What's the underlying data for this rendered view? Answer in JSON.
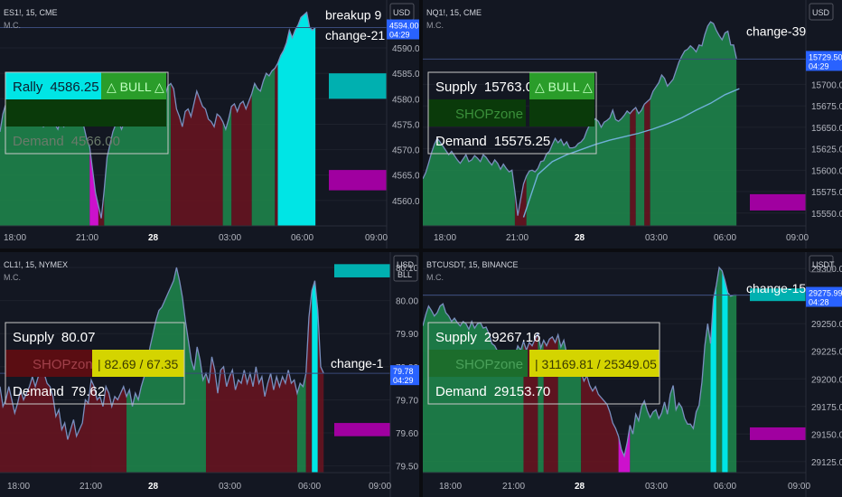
{
  "colors": {
    "background": "#131722",
    "bull_fill": "#1f8a4c",
    "bear_fill": "#6b1420",
    "magenta": "#cc11cc",
    "cyan": "#00e5e5",
    "line": "#6fb0d8",
    "box_border": "#c8c8c8",
    "price_label": "#2962ff",
    "demand_band": "#a000a0",
    "supply_band": "#00b0b0",
    "bull_badge": "#2a9d2a",
    "yellow": "#d4d400",
    "shop_dark": "#0a3a0a",
    "shop_red": "#5a0d12",
    "shop_green": "#1c6d2c",
    "rally_cyan": "#00e5e5",
    "grid": "#1e222d"
  },
  "chart_data": [
    {
      "type": "area",
      "title": "ES1!, 15, CME",
      "subtitle": "M.C.",
      "currency": "USD",
      "unit": "",
      "ylim": [
        4555,
        4598
      ],
      "yticks": [
        4560,
        4565,
        4570,
        4575,
        4580,
        4585,
        4590
      ],
      "ytick_labels": [
        "4560.00",
        "4565.00",
        "4570.00",
        "4575.00",
        "4580.00",
        "4585.00",
        "4590.00"
      ],
      "xticks": [
        "18:00",
        "21:00",
        "28",
        "03:00",
        "06:00",
        "09:00"
      ],
      "xtick_pos": [
        0.0,
        0.0,
        0.0,
        0.0,
        0.0,
        0.0
      ],
      "x_range": [
        0,
        114
      ],
      "price_label": "4594.00",
      "price_time": "04:29",
      "price_value": 4594.0,
      "values": [
        4573.5,
        4577.0,
        4579.0,
        4581.0,
        4578.5,
        4579.5,
        4577.0,
        4576.0,
        4575.5,
        4578.0,
        4576.5,
        4576.0,
        4577.5,
        4575.0,
        4576.0,
        4574.5,
        4575.0,
        4576.5,
        4575.5,
        4575.0,
        4574.0,
        4576.0,
        4574.5,
        4575.0,
        4576.5,
        4575.5,
        4576.0,
        4575.0,
        4577.0,
        4574.5,
        4572.0,
        4570.5,
        4566.0,
        4561.5,
        4559.0,
        4556.5,
        4562.0,
        4568.5,
        4571.0,
        4573.5,
        4575.0,
        4575.5,
        4574.0,
        4575.5,
        4577.0,
        4575.5,
        4576.0,
        4578.5,
        4578.0,
        4576.5,
        4578.0,
        4577.5,
        4576.5,
        4577.0,
        4578.0,
        4577.0,
        4579.0,
        4580.5,
        4582.5,
        4583.0,
        4582.0,
        4578.0,
        4576.5,
        4574.5,
        4577.5,
        4578.0,
        4576.5,
        4579.0,
        4581.5,
        4580.0,
        4578.5,
        4578.0,
        4576.0,
        4575.5,
        4574.5,
        4577.0,
        4576.5,
        4575.5,
        4574.0,
        4576.0,
        4578.5,
        4579.0,
        4577.5,
        4579.0,
        4579.5,
        4578.0,
        4579.5,
        4581.0,
        4583.0,
        4582.0,
        4581.5,
        4583.5,
        4585.0,
        4584.5,
        4585.5,
        4586.0,
        4587.0,
        4588.5,
        4589.5,
        4591.0,
        4593.5,
        4592.0,
        4593.5,
        4594.5,
        4596.0,
        4596.5,
        4597.0,
        4594.0,
        4593.5,
        4594.0
      ],
      "segments": [
        {
          "from": 0,
          "to": 31,
          "color": "bull"
        },
        {
          "from": 31,
          "to": 34,
          "color": "magenta"
        },
        {
          "from": 34,
          "to": 36,
          "color": "bear"
        },
        {
          "from": 36,
          "to": 59,
          "color": "bull"
        },
        {
          "from": 59,
          "to": 77,
          "color": "bear"
        },
        {
          "from": 77,
          "to": 80,
          "color": "bull"
        },
        {
          "from": 80,
          "to": 87,
          "color": "bear"
        },
        {
          "from": 87,
          "to": 95,
          "color": "bull"
        },
        {
          "from": 95,
          "to": 96,
          "color": "bear"
        },
        {
          "from": 96,
          "to": 110,
          "color": "cyan"
        }
      ],
      "annotations": [
        {
          "text": "breakup 9",
          "x": 112.0,
          "y": 4596.5
        },
        {
          "text": "change-21",
          "x": 112.0,
          "y": 4592.5
        }
      ],
      "bands": [
        {
          "y_top": 4585.0,
          "y_bottom": 4580.0,
          "kind": "supply"
        },
        {
          "y_top": 4566.0,
          "y_bottom": 4562.0,
          "kind": "demand"
        }
      ],
      "box": {
        "rows": [
          {
            "label": "Rally",
            "value": "4586.25",
            "style": "rally"
          },
          {
            "label": "",
            "value": "",
            "style": "dark"
          },
          {
            "label": "Demand",
            "value": "4566.00",
            "style": "demand"
          }
        ],
        "badge": "△ BULL △"
      }
    },
    {
      "type": "area",
      "title": "NQ1!, 15, CME",
      "subtitle": "M.C.",
      "currency": "USD",
      "unit": "",
      "ylim": [
        15535,
        15790
      ],
      "yticks": [
        15550,
        15575,
        15600,
        15625,
        15650,
        15675,
        15700
      ],
      "ytick_labels": [
        "15550.00",
        "15575.00",
        "15600.00",
        "15625.00",
        "15650.00",
        "15675.00",
        "15700.00"
      ],
      "xticks": [
        "18:00",
        "21:00",
        "28",
        "03:00",
        "06:00",
        "09:00"
      ],
      "xtick_pos": [
        0.0,
        0.0,
        0.0,
        0.0,
        0.0,
        0.0
      ],
      "x_range": [
        0,
        114
      ],
      "price_label": "15729.50",
      "price_time": "04:29",
      "price_value": 15729.5,
      "values": [
        15590.0,
        15597.0,
        15608.0,
        15620.0,
        15630.0,
        15637.0,
        15633.0,
        15628.0,
        15623.0,
        15618.0,
        15622.0,
        15617.0,
        15612.0,
        15608.0,
        15613.0,
        15618.0,
        15610.0,
        15612.0,
        15617.0,
        15614.0,
        15610.0,
        15618.0,
        15615.0,
        15610.0,
        15606.0,
        15612.0,
        15608.0,
        15601.0,
        15607.0,
        15602.0,
        15598.0,
        15600.0,
        15575.0,
        15547.0,
        15566.0,
        15584.0,
        15593.0,
        15599.0,
        15600.0,
        15598.0,
        15602.0,
        15610.0,
        15611.0,
        15619.0,
        15622.0,
        15630.0,
        15637.0,
        15632.0,
        15636.0,
        15629.0,
        15633.0,
        15626.0,
        15626.0,
        15627.0,
        15631.0,
        15633.0,
        15637.0,
        15646.0,
        15653.0,
        15657.0,
        15660.0,
        15657.0,
        15650.0,
        15656.0,
        15658.0,
        15661.0,
        15670.0,
        15659.0,
        15657.0,
        15660.0,
        15664.0,
        15669.0,
        15666.0,
        15670.0,
        15673.0,
        15666.0,
        15670.0,
        15677.0,
        15680.0,
        15683.0,
        15692.0,
        15697.0,
        15702.0,
        15711.0,
        15707.0,
        15698.0,
        15702.0,
        15706.0,
        15716.0,
        15726.0,
        15733.0,
        15739.0,
        15741.0,
        15745.0,
        15742.0,
        15738.0,
        15746.0,
        15745.0,
        15758.0,
        15768.0,
        15773.0,
        15771.0,
        15763.0,
        15757.0,
        15752.0,
        15760.0,
        15762.0,
        15746.0,
        15746.0,
        15730.0
      ],
      "segments": [
        {
          "from": 0,
          "to": 32,
          "color": "bull"
        },
        {
          "from": 32,
          "to": 36,
          "color": "bear"
        },
        {
          "from": 36,
          "to": 72,
          "color": "bull"
        },
        {
          "from": 72,
          "to": 74,
          "color": "bear"
        },
        {
          "from": 74,
          "to": 77,
          "color": "bull"
        },
        {
          "from": 77,
          "to": 79,
          "color": "bear"
        },
        {
          "from": 79,
          "to": 110,
          "color": "bull"
        }
      ],
      "line": [
        [
          35,
          15545.0
        ],
        [
          40,
          15595.0
        ],
        [
          45,
          15610.0
        ],
        [
          50,
          15618.0
        ],
        [
          55,
          15624.0
        ],
        [
          60,
          15630.0
        ],
        [
          65,
          15635.0
        ],
        [
          70,
          15639.0
        ],
        [
          75,
          15643.0
        ],
        [
          80,
          15648.0
        ],
        [
          85,
          15654.0
        ],
        [
          90,
          15661.0
        ],
        [
          95,
          15670.0
        ],
        [
          100,
          15678.0
        ],
        [
          105,
          15688.0
        ],
        [
          110,
          15695.0
        ]
      ],
      "annotations": [
        {
          "text": "change-39",
          "x": 112.0,
          "y": 15762.0
        }
      ],
      "bands": [
        {
          "y_top": 15572.0,
          "y_bottom": 15553.0,
          "kind": "demand"
        }
      ],
      "box": {
        "rows": [
          {
            "label": "Supply",
            "value": "15763.00",
            "style": "supply"
          },
          {
            "label": "SHOPzone",
            "value": "",
            "style": "shop"
          },
          {
            "label": "Demand",
            "value": "15575.25",
            "style": "demand"
          }
        ],
        "badge": "△ BULL △"
      }
    },
    {
      "type": "area",
      "title": "CL1!, 15, NYMEX",
      "subtitle": "M.C.",
      "currency": "USD",
      "unit": "BLL",
      "ylim": [
        79.48,
        80.13
      ],
      "yticks": [
        79.5,
        79.6,
        79.7,
        79.8,
        79.9,
        80.0,
        80.1
      ],
      "ytick_labels": [
        "79.50",
        "79.60",
        "79.70",
        "79.80",
        "79.90",
        "80.00",
        "80.10"
      ],
      "xticks": [
        "18:00",
        "21:00",
        "28",
        "03:00",
        "06:00",
        "09:00"
      ],
      "xtick_pos": [
        0.0,
        0.0,
        0.0,
        0.0,
        0.0,
        0.0
      ],
      "x_range": [
        0,
        114
      ],
      "price_label": "79.78",
      "price_time": "04:29",
      "price_value": 79.78,
      "values": [
        79.74,
        79.68,
        79.7,
        79.74,
        79.7,
        79.66,
        79.69,
        79.73,
        79.7,
        79.72,
        79.74,
        79.77,
        79.74,
        79.77,
        79.8,
        79.78,
        79.75,
        79.74,
        79.71,
        79.65,
        79.67,
        79.61,
        79.63,
        79.58,
        79.61,
        79.64,
        79.59,
        79.61,
        79.63,
        79.7,
        79.69,
        79.76,
        79.74,
        79.7,
        79.71,
        79.68,
        79.74,
        79.72,
        79.68,
        79.71,
        79.7,
        79.72,
        79.74,
        79.71,
        79.73,
        79.68,
        79.72,
        79.7,
        79.74,
        79.77,
        79.81,
        79.86,
        79.9,
        79.94,
        79.97,
        79.98,
        80.0,
        80.02,
        80.04,
        80.06,
        80.1,
        80.06,
        80.01,
        79.94,
        79.88,
        79.82,
        79.79,
        79.86,
        79.82,
        79.76,
        79.78,
        79.75,
        79.83,
        79.79,
        79.72,
        79.79,
        79.8,
        79.74,
        79.77,
        79.79,
        79.73,
        79.76,
        79.75,
        79.79,
        79.75,
        79.78,
        79.74,
        79.8,
        79.75,
        79.77,
        79.71,
        79.75,
        79.78,
        79.73,
        79.77,
        79.74,
        79.77,
        79.75,
        79.79,
        79.75,
        79.76,
        79.72,
        79.75,
        79.74,
        79.78,
        79.95,
        80.03,
        80.06,
        79.97,
        79.8,
        79.78
      ],
      "segments": [
        {
          "from": 0,
          "to": 31,
          "color": "bear"
        },
        {
          "from": 31,
          "to": 43,
          "color": "bear"
        },
        {
          "from": 43,
          "to": 70,
          "color": "bull"
        },
        {
          "from": 70,
          "to": 101,
          "color": "bear"
        },
        {
          "from": 101,
          "to": 104,
          "color": "bull"
        },
        {
          "from": 104,
          "to": 106,
          "color": "bear"
        },
        {
          "from": 106,
          "to": 108,
          "color": "cyan"
        },
        {
          "from": 108,
          "to": 110,
          "color": "bear"
        }
      ],
      "annotations": [
        {
          "text": "change-1",
          "x": 112.0,
          "y": 79.81
        }
      ],
      "bands": [
        {
          "y_top": 80.11,
          "y_bottom": 80.07,
          "kind": "supply"
        },
        {
          "y_top": 79.63,
          "y_bottom": 79.59,
          "kind": "demand"
        }
      ],
      "box": {
        "rows": [
          {
            "label": "Supply",
            "value": "80.07",
            "style": "supply"
          },
          {
            "label": "SHOPzone",
            "value": "",
            "style": "shop_red"
          },
          {
            "label": "Demand",
            "value": "79.62",
            "style": "demand"
          }
        ],
        "badge": "|   82.69 / 67.35"
      }
    },
    {
      "type": "area",
      "title": "BTCUSDT, 15, BINANCE",
      "subtitle": "M.C.",
      "currency": "USDT",
      "unit": "",
      "ylim": [
        29115,
        29310
      ],
      "yticks": [
        29125,
        29150,
        29175,
        29200,
        29225,
        29250,
        29275,
        29300
      ],
      "ytick_labels": [
        "29125.00",
        "29150.00",
        "29175.00",
        "29200.00",
        "29225.00",
        "29250.00",
        "29275.00",
        "29300.00"
      ],
      "xticks": [
        "18:00",
        "21:00",
        "28",
        "03:00",
        "06:00",
        "09:00"
      ],
      "xtick_pos": [
        0.0,
        0.0,
        0.0,
        0.0,
        0.0,
        0.0
      ],
      "x_range": [
        0,
        114
      ],
      "price_label": "29275.99",
      "price_time": "04:28",
      "price_value": 29275.99,
      "values": [
        29248,
        29258,
        29266,
        29262,
        29257,
        29260,
        29266,
        29268,
        29260,
        29257,
        29252,
        29255,
        29251,
        29248,
        29252,
        29250,
        29245,
        29252,
        29246,
        29250,
        29251,
        29246,
        29247,
        29241,
        29232,
        29230,
        29225,
        29220,
        29217,
        29215,
        29223,
        29218,
        29221,
        29230,
        29226,
        29234,
        29226,
        29233,
        29230,
        29236,
        29241,
        29228,
        29235,
        29230,
        29236,
        29238,
        29233,
        29240,
        29229,
        29235,
        29223,
        29214,
        29218,
        29210,
        29214,
        29206,
        29198,
        29203,
        29194,
        29189,
        29193,
        29186,
        29183,
        29180,
        29177,
        29170,
        29160,
        29155,
        29148,
        29136,
        29130,
        29142,
        29158,
        29150,
        29168,
        29162,
        29175,
        29180,
        29171,
        29165,
        29170,
        29172,
        29164,
        29169,
        29179,
        29168,
        29186,
        29194,
        29172,
        29178,
        29174,
        29164,
        29159,
        29159,
        29155,
        29170,
        29176,
        29197,
        29230,
        29250,
        29232,
        29272,
        29285,
        29301,
        29298,
        29289,
        29278,
        29275,
        29276,
        29276
      ],
      "segments": [
        {
          "from": 0,
          "to": 35,
          "color": "bull"
        },
        {
          "from": 35,
          "to": 40,
          "color": "bear"
        },
        {
          "from": 40,
          "to": 42,
          "color": "bull"
        },
        {
          "from": 42,
          "to": 47,
          "color": "bear"
        },
        {
          "from": 47,
          "to": 55,
          "color": "bull"
        },
        {
          "from": 55,
          "to": 68,
          "color": "bear"
        },
        {
          "from": 68,
          "to": 72,
          "color": "magenta"
        },
        {
          "from": 72,
          "to": 100,
          "color": "bull"
        },
        {
          "from": 100,
          "to": 102,
          "color": "cyan"
        },
        {
          "from": 102,
          "to": 104,
          "color": "bull"
        },
        {
          "from": 104,
          "to": 106,
          "color": "cyan"
        },
        {
          "from": 106,
          "to": 108,
          "color": "bull"
        },
        {
          "from": 108,
          "to": 110,
          "color": "bull"
        }
      ],
      "annotations": [
        {
          "text": "change-15",
          "x": 112.0,
          "y": 29282.0
        }
      ],
      "bands": [
        {
          "y_top": 29282.0,
          "y_bottom": 29275.0,
          "kind": "supply"
        },
        {
          "y_top": 29156.0,
          "y_bottom": 29146.0,
          "kind": "demand"
        }
      ],
      "box": {
        "rows": [
          {
            "label": "Supply",
            "value": "29267.16",
            "style": "supply"
          },
          {
            "label": "SHOPzone",
            "value": "",
            "style": "shop_green"
          },
          {
            "label": "Demand",
            "value": "29153.70",
            "style": "demand"
          }
        ],
        "badge": "|   31169.81 / 25349.05"
      }
    }
  ]
}
